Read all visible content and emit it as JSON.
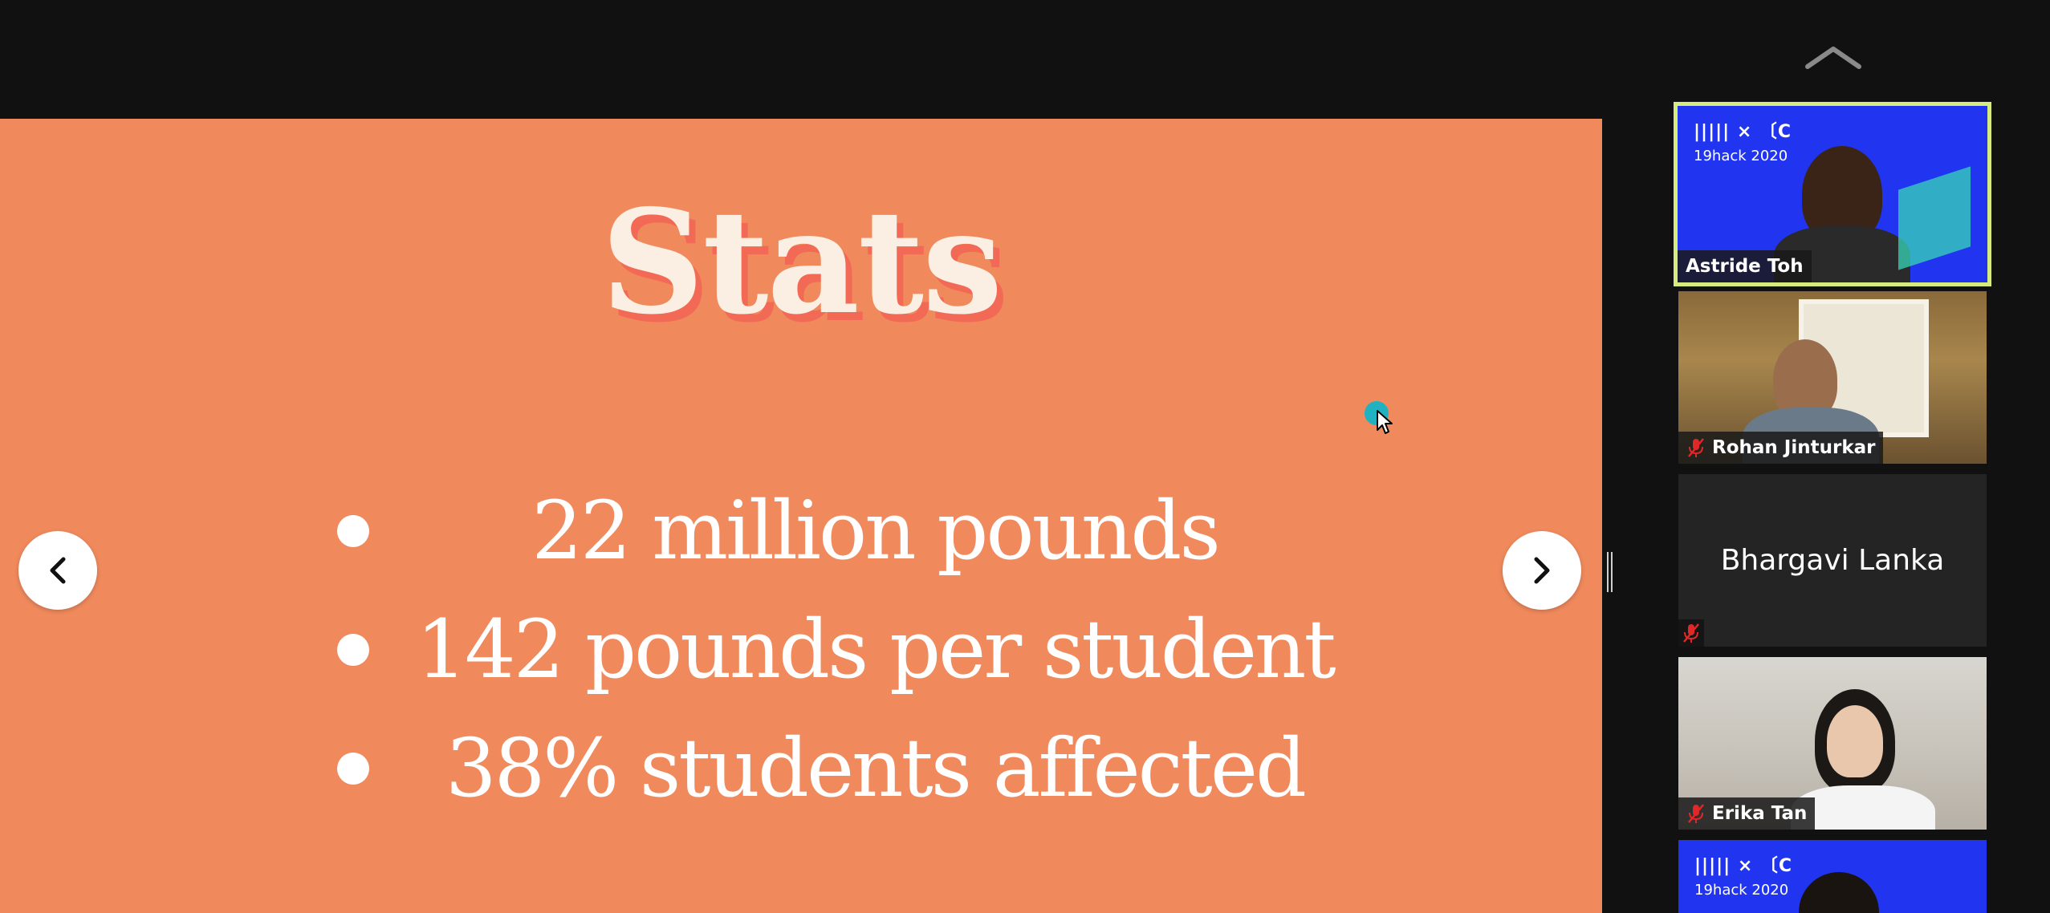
{
  "slide": {
    "title": "Stats",
    "bullets": [
      "22 million pounds",
      "142 pounds per student",
      "38% students affected"
    ],
    "background_color": "#f08a5d",
    "title_color": "#fbeee2",
    "title_shadow_color": "#f26a55"
  },
  "navigation": {
    "prev_icon": "chevron-left-icon",
    "next_icon": "chevron-right-icon",
    "collapse_icon": "chevron-up-icon"
  },
  "participants": [
    {
      "name": "Astride Toh",
      "active_speaker": true,
      "muted": false,
      "video": "virtual-background",
      "background_brand": "19hack 2020"
    },
    {
      "name": "Rohan Jinturkar",
      "active_speaker": false,
      "muted": true,
      "video": "camera"
    },
    {
      "name": "Bhargavi Lanka",
      "active_speaker": false,
      "muted": true,
      "video": "off"
    },
    {
      "name": "Erika Tan",
      "active_speaker": false,
      "muted": true,
      "video": "camera"
    },
    {
      "name": "",
      "active_speaker": false,
      "muted": false,
      "video": "virtual-background",
      "background_brand": "19hack 2020"
    }
  ],
  "colors": {
    "active_speaker_border": "#d6ec7e",
    "mute_icon": "#e02828",
    "cursor_highlight": "#20b2c0"
  }
}
